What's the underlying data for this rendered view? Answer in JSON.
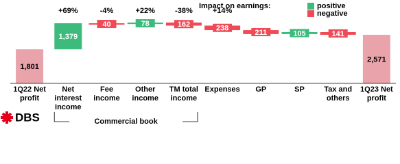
{
  "chart_data": {
    "type": "waterfall",
    "categories": [
      "1Q22 Net profit",
      "Net interest income",
      "Fee income",
      "Other income",
      "TM total income",
      "Expenses",
      "GP",
      "SP",
      "Tax and others",
      "1Q23 Net profit"
    ],
    "values": [
      1801,
      1379,
      -40,
      78,
      -162,
      -238,
      -211,
      105,
      -141,
      2571
    ],
    "value_labels": [
      "1,801",
      "1,379",
      "40",
      "78",
      "162",
      "238",
      "211",
      "105",
      "141",
      "2,571"
    ],
    "growth_labels": [
      null,
      "+69%",
      "-4%",
      "+22%",
      "-38%",
      "+14%",
      null,
      null,
      null,
      null
    ],
    "legend_title": "Impact on earnings:",
    "legend": [
      {
        "name": "positive",
        "color": "#3dbb7c"
      },
      {
        "name": "negative",
        "color": "#ef4b57"
      }
    ],
    "total_color": "#e9a3aa",
    "group": {
      "label": "Commercial book",
      "from": 1,
      "to": 4
    },
    "logo": "DBS"
  }
}
